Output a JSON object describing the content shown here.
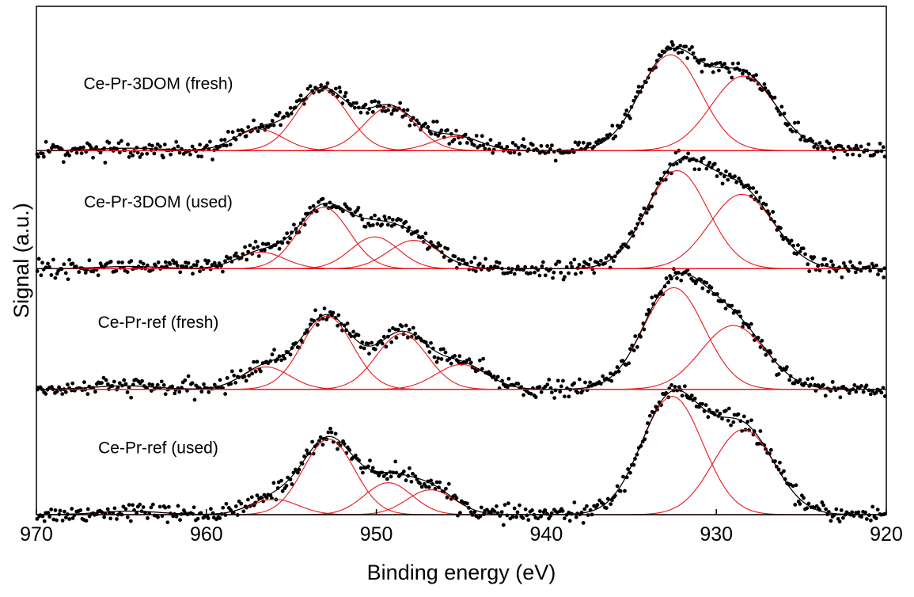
{
  "chart_data": {
    "type": "scatter",
    "title": "",
    "xlabel": "Binding energy (eV)",
    "ylabel": "Signal (a.u.)",
    "xlim": [
      970,
      920
    ],
    "x_reversed": true,
    "ylim": [
      0,
      4.3
    ],
    "x_ticks": [
      "970",
      "960",
      "950",
      "940",
      "930",
      "920"
    ],
    "x_tick_values": [
      970,
      960,
      950,
      940,
      930,
      920
    ],
    "y_ticks_shown": false,
    "grid": false,
    "legend": "none",
    "colors": {
      "points": "#000000",
      "envelope": "#000000",
      "components": "#e8161b",
      "axes": "#000000"
    },
    "series": [
      {
        "name": "Ce-Pr-ref (used)",
        "baseline": 0,
        "components": [
          {
            "center": 964.5,
            "height": 0.03,
            "sigma": 1.8
          },
          {
            "center": 956.0,
            "height": 0.13,
            "sigma": 1.4
          },
          {
            "center": 952.8,
            "height": 0.64,
            "sigma": 1.5
          },
          {
            "center": 949.3,
            "height": 0.27,
            "sigma": 1.4
          },
          {
            "center": 946.8,
            "height": 0.21,
            "sigma": 1.4
          },
          {
            "center": 932.6,
            "height": 1.0,
            "sigma": 1.8
          },
          {
            "center": 928.4,
            "height": 0.72,
            "sigma": 1.8
          }
        ]
      },
      {
        "name": "Ce-Pr-ref (fresh)",
        "baseline": 1.06,
        "components": [
          {
            "center": 964.8,
            "height": 0.03,
            "sigma": 1.8
          },
          {
            "center": 956.5,
            "height": 0.19,
            "sigma": 1.4
          },
          {
            "center": 952.9,
            "height": 0.62,
            "sigma": 1.5
          },
          {
            "center": 948.5,
            "height": 0.47,
            "sigma": 1.5
          },
          {
            "center": 945.0,
            "height": 0.21,
            "sigma": 1.5
          },
          {
            "center": 932.5,
            "height": 0.86,
            "sigma": 1.8
          },
          {
            "center": 929.0,
            "height": 0.54,
            "sigma": 1.9
          }
        ]
      },
      {
        "name": "Ce-Pr-3DOM (used)",
        "baseline": 2.08,
        "components": [
          {
            "center": 964.5,
            "height": 0.02,
            "sigma": 1.8
          },
          {
            "center": 956.8,
            "height": 0.14,
            "sigma": 1.4
          },
          {
            "center": 953.1,
            "height": 0.52,
            "sigma": 1.5
          },
          {
            "center": 950.1,
            "height": 0.27,
            "sigma": 1.4
          },
          {
            "center": 947.8,
            "height": 0.24,
            "sigma": 1.5
          },
          {
            "center": 932.3,
            "height": 0.83,
            "sigma": 1.8
          },
          {
            "center": 928.5,
            "height": 0.63,
            "sigma": 1.9
          }
        ]
      },
      {
        "name": "Ce-Pr-3DOM (fresh)",
        "baseline": 3.08,
        "components": [
          {
            "center": 964.5,
            "height": 0.02,
            "sigma": 1.8
          },
          {
            "center": 956.9,
            "height": 0.18,
            "sigma": 1.4
          },
          {
            "center": 953.2,
            "height": 0.52,
            "sigma": 1.5
          },
          {
            "center": 949.2,
            "height": 0.37,
            "sigma": 1.5
          },
          {
            "center": 945.3,
            "height": 0.12,
            "sigma": 1.4
          },
          {
            "center": 932.7,
            "height": 0.81,
            "sigma": 1.8
          },
          {
            "center": 928.4,
            "height": 0.63,
            "sigma": 1.9
          }
        ]
      }
    ]
  }
}
